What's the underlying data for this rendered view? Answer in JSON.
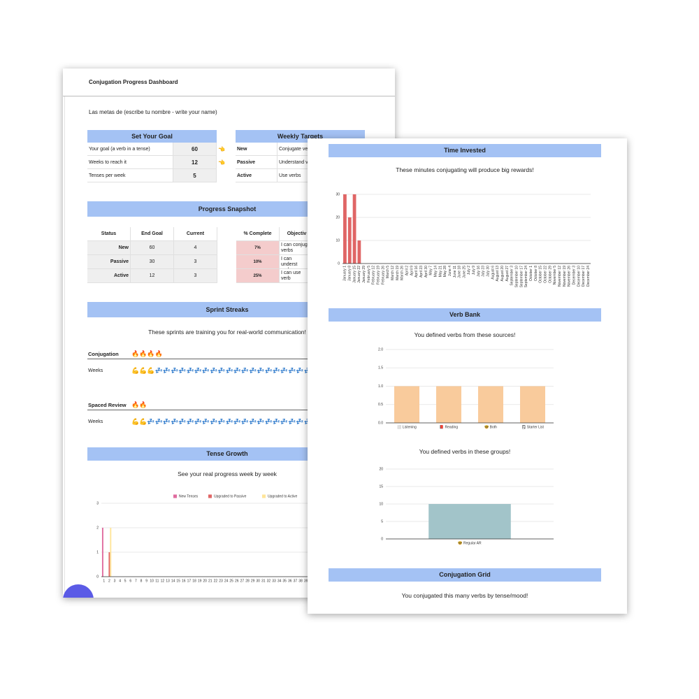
{
  "left": {
    "title": "Conjugation Progress Dashboard",
    "subtitle": "Las metas de (escribe tu nombre - write your name)",
    "set_goal": {
      "header": "Set Your Goal",
      "pointer": "👈",
      "rows": [
        {
          "label": "Your goal (a verb in a tense)",
          "value": 60
        },
        {
          "label": "Weeks to reach it",
          "value": 12
        },
        {
          "label": "Tenses per week",
          "value": 5
        }
      ]
    },
    "weekly_targets": {
      "header": "Weekly Targets",
      "rows": [
        {
          "label": "New",
          "text": "Conjugate ve"
        },
        {
          "label": "Passive",
          "text": "Understand v"
        },
        {
          "label": "Active",
          "text": "Use verbs"
        }
      ]
    },
    "snapshot": {
      "header": "Progress Snapshot",
      "columns": [
        "Status",
        "End Goal",
        "Current"
      ],
      "rows": [
        [
          "New",
          60,
          4
        ],
        [
          "Passive",
          30,
          3
        ],
        [
          "Active",
          12,
          3
        ]
      ],
      "complete_columns": [
        "% Complete",
        "Objectiv"
      ],
      "complete_rows": [
        [
          "7%",
          "I can conjug verbs"
        ],
        [
          "10%",
          "I can underst verbs"
        ],
        [
          "25%",
          "I can use verb"
        ]
      ]
    },
    "sprints": {
      "header": "Sprint Streaks",
      "subtitle": "These sprints are training you for real-world communication!",
      "items": [
        {
          "name": "Conjugation",
          "streak": "🔥🔥🔥🔥",
          "label": "Weeks",
          "weeks": "💪💪💪💤💤💤💤💤💤💤💤💤💤💤💤💤💤💤💤💤💤💤💤💤💤"
        },
        {
          "name": "Spaced Review",
          "streak": "🔥🔥",
          "label": "Weeks",
          "weeks": "💪💪💤💤💤💤💤💤💤💤💤💤💤💤💤💤💤💤💤💤💤💤💤💤💤"
        }
      ]
    },
    "tense_growth": {
      "header": "Tense Growth",
      "subtitle": "See your real progress week by week",
      "chart": {
        "type": "bar",
        "categories": [
          "1",
          "2",
          "3",
          "4",
          "5",
          "6",
          "7",
          "8",
          "9",
          "10",
          "11",
          "12",
          "13",
          "14",
          "15",
          "16",
          "17",
          "18",
          "19",
          "20",
          "21",
          "22",
          "23",
          "24",
          "25",
          "26",
          "27",
          "28",
          "29",
          "30",
          "31",
          "32",
          "33",
          "34",
          "35",
          "36",
          "37",
          "38",
          "39",
          "40"
        ],
        "series": [
          {
            "name": "New Tenses",
            "color": "#e06c9f",
            "values": [
              2,
              0,
              0,
              0,
              0,
              0,
              0,
              0,
              0,
              0,
              0,
              0,
              0,
              0,
              0,
              0,
              0,
              0,
              0,
              0,
              0,
              0,
              0,
              0,
              0,
              0,
              0,
              0,
              0,
              0,
              0,
              0,
              0,
              0,
              0,
              0,
              0,
              0,
              0,
              0
            ]
          },
          {
            "name": "Upgraded to Passive",
            "color": "#e06666",
            "values": [
              0,
              1,
              0,
              0,
              0,
              0,
              0,
              0,
              0,
              0,
              0,
              0,
              0,
              0,
              0,
              0,
              0,
              0,
              0,
              0,
              0,
              0,
              0,
              0,
              0,
              0,
              0,
              0,
              0,
              0,
              0,
              0,
              0,
              0,
              0,
              0,
              0,
              0,
              0,
              0
            ]
          },
          {
            "name": "Upgraded to Active",
            "color": "#ffe599",
            "values": [
              0,
              2,
              0,
              0,
              0,
              0,
              0,
              0,
              0,
              0,
              0,
              0,
              0,
              0,
              0,
              0,
              0,
              0,
              0,
              0,
              0,
              0,
              0,
              0,
              0,
              0,
              0,
              0,
              0,
              0,
              0,
              0,
              0,
              0,
              0,
              0,
              0,
              0,
              0,
              0
            ]
          }
        ],
        "ylim": [
          0,
          3
        ],
        "yticks": [
          0,
          1,
          2,
          3
        ],
        "grid": true,
        "legend": "top"
      }
    }
  },
  "right": {
    "time_invested": {
      "header": "Time Invested",
      "subtitle": "These minutes conjugating will produce big rewards!",
      "chart": {
        "type": "bar",
        "categories": [
          "January 1",
          "January 8",
          "January 15",
          "January 22",
          "January 29",
          "February 5",
          "February 12",
          "February 19",
          "February 26",
          "March 5",
          "March 12",
          "March 19",
          "March 26",
          "April 2",
          "April 9",
          "April 16",
          "April 23",
          "April 30",
          "May 7",
          "May 14",
          "May 21",
          "May 28",
          "June 4",
          "June 11",
          "June 18",
          "June 25",
          "July 2",
          "July 9",
          "July 16",
          "July 23",
          "July 30",
          "August 6",
          "August 13",
          "August 20",
          "August 27",
          "September 3",
          "September 10",
          "September 17",
          "September 24",
          "October 1",
          "October 8",
          "October 15",
          "October 22",
          "October 29",
          "November 5",
          "November 12",
          "November 19",
          "November 26",
          "December 3",
          "December 10",
          "December 17",
          "December 24"
        ],
        "values": [
          30,
          20,
          30,
          10,
          0,
          0,
          0,
          0,
          0,
          0,
          0,
          0,
          0,
          0,
          0,
          0,
          0,
          0,
          0,
          0,
          0,
          0,
          0,
          0,
          0,
          0,
          0,
          0,
          0,
          0,
          0,
          0,
          0,
          0,
          0,
          0,
          0,
          0,
          0,
          0,
          0,
          0,
          0,
          0,
          0,
          0,
          0,
          0,
          0,
          0,
          0,
          0
        ],
        "color": "#e06666",
        "ylim": [
          0,
          30
        ],
        "yticks": [
          0,
          10,
          20,
          30
        ],
        "grid": true
      }
    },
    "verb_bank": {
      "header": "Verb Bank",
      "subtitle": "You defined verbs from these sources!",
      "chart": {
        "type": "bar",
        "categories": [
          "⬜ Listening",
          "📕 Reading",
          "🤓 Both",
          "🗒 Starter List"
        ],
        "values": [
          1,
          1,
          1,
          1
        ],
        "color": "#f9cb9c",
        "ylim": [
          0,
          2
        ],
        "yticks": [
          {
            "value": 0,
            "label": "0.0"
          },
          {
            "value": 0.5,
            "label": "0.5"
          },
          {
            "value": 1,
            "label": "1.0"
          },
          {
            "value": 1.5,
            "label": "1.5"
          },
          {
            "value": 2,
            "label": "2.0"
          }
        ],
        "grid": true
      },
      "subtitle2": "You defined verbs in these groups!",
      "chart2": {
        "type": "bar",
        "categories": [
          "🤓 Regular AR"
        ],
        "values": [
          10
        ],
        "color": "#a2c4c9",
        "ylim": [
          0,
          20
        ],
        "yticks": [
          0,
          5,
          10,
          15,
          20
        ],
        "grid": true
      }
    },
    "conjugation_grid": {
      "header": "Conjugation Grid",
      "subtitle": "You conjugated this many verbs by tense/mood!"
    }
  }
}
